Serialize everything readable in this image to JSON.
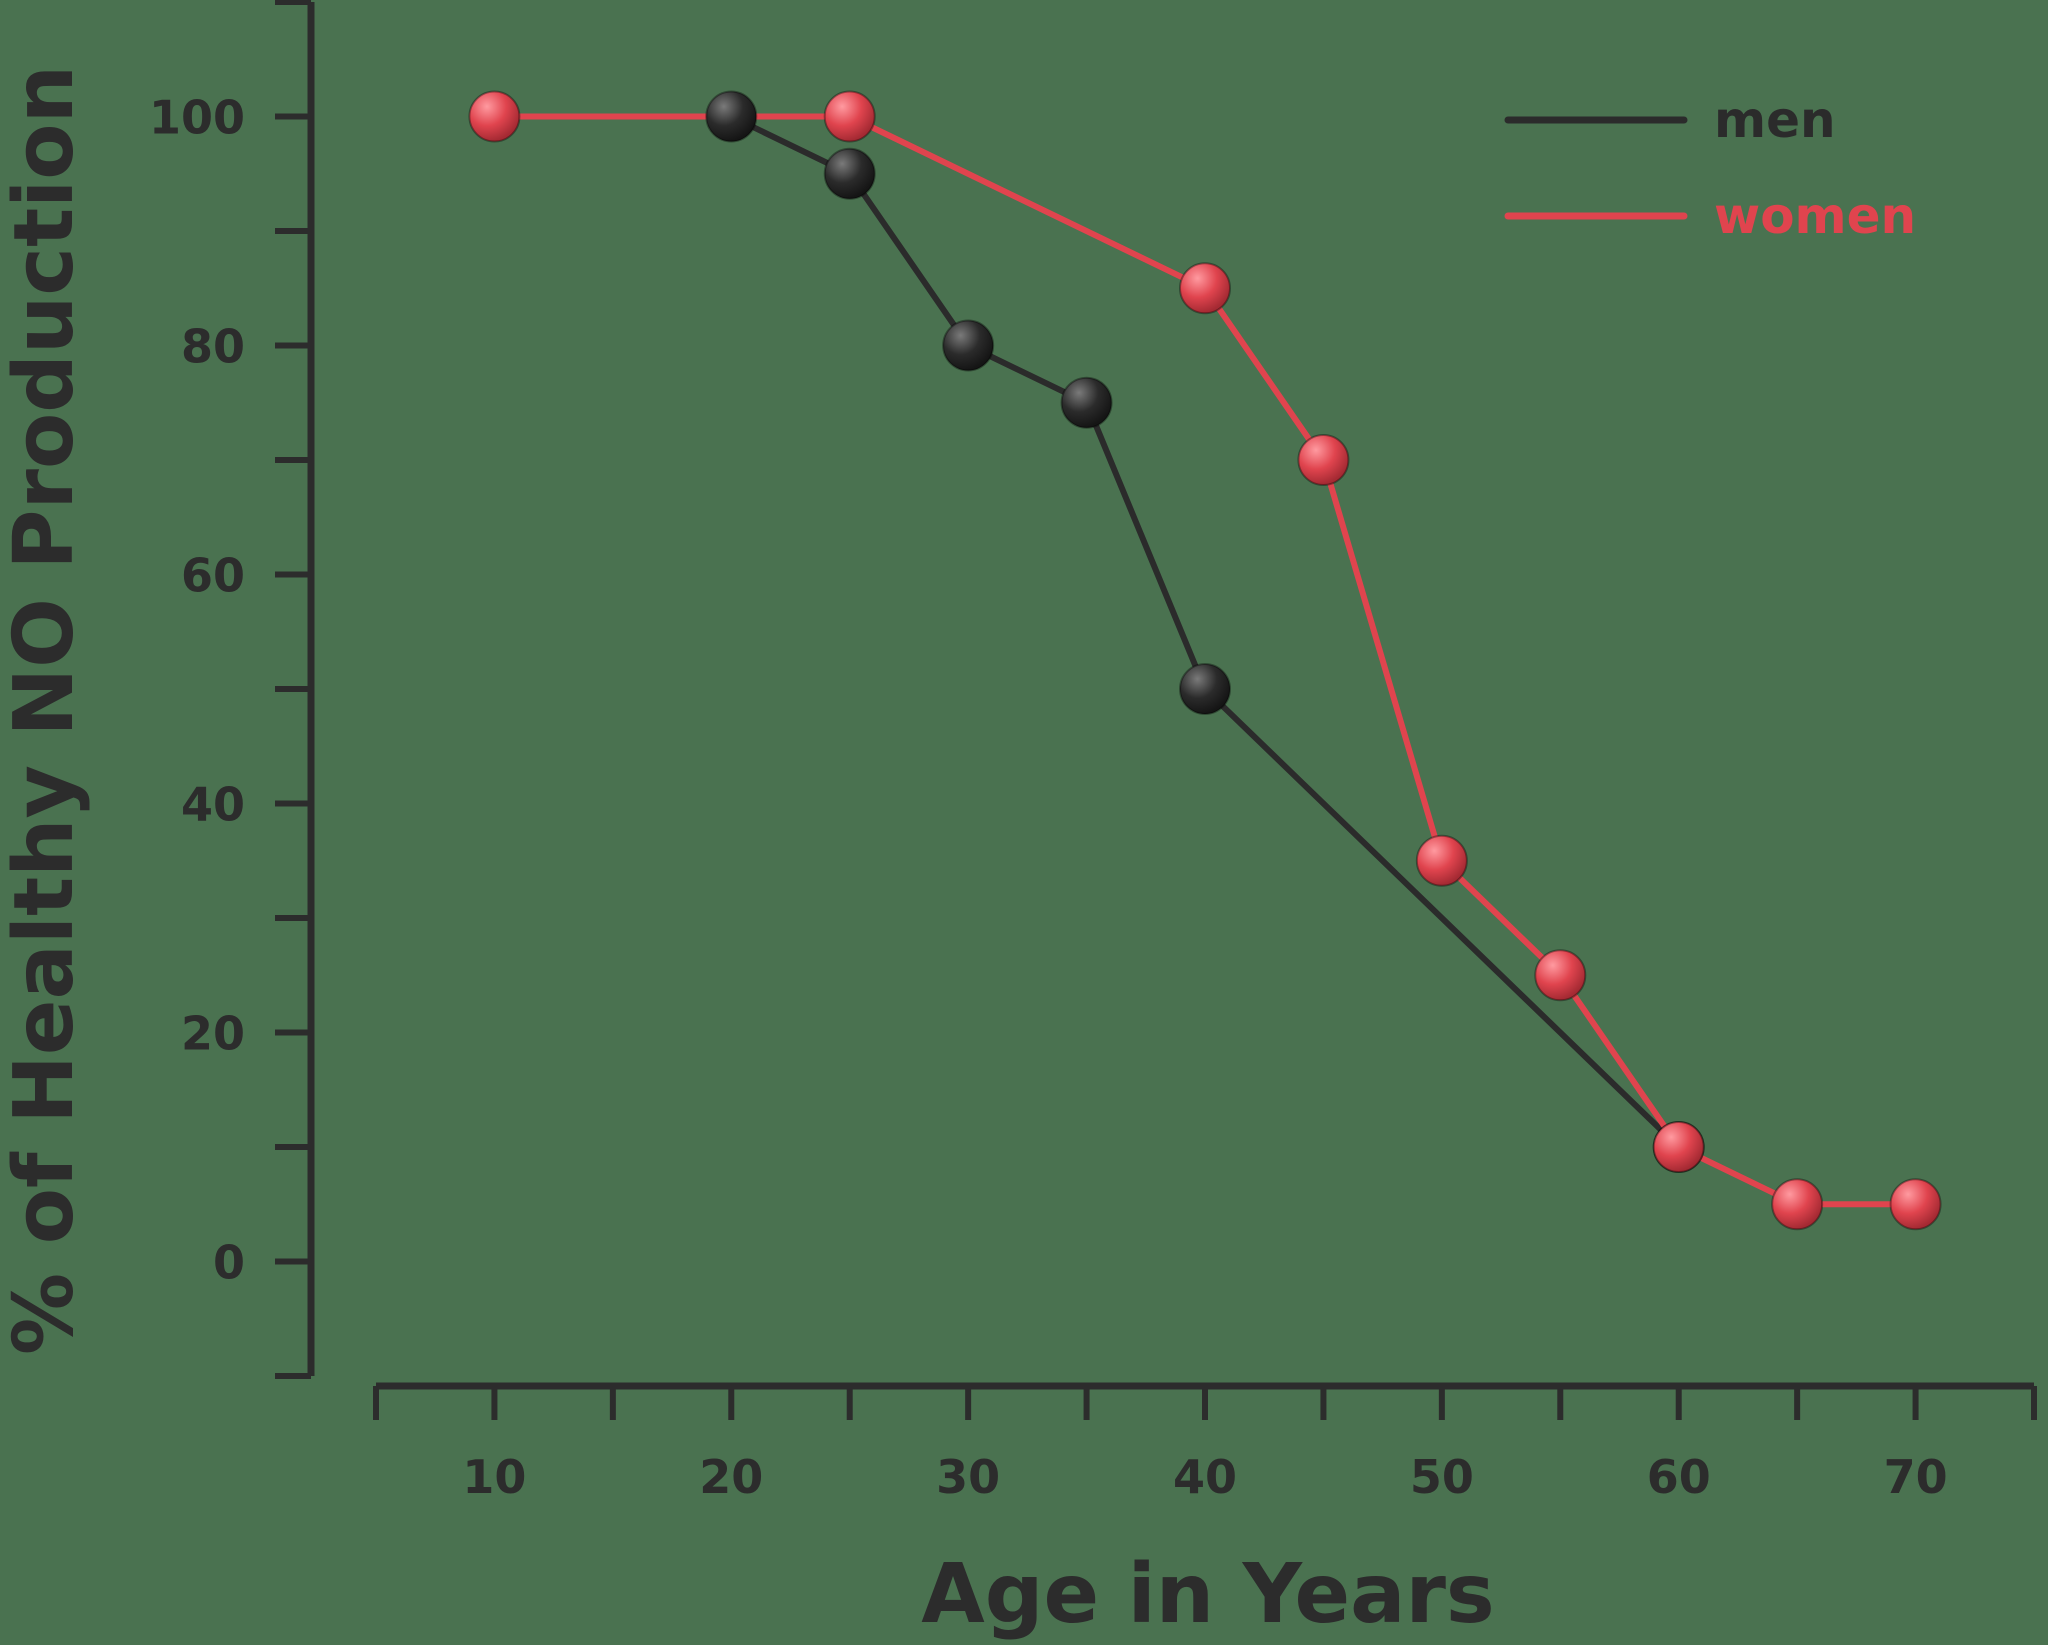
{
  "chart_data": {
    "type": "line",
    "title": "",
    "xlabel": "Age in Years",
    "ylabel": "% of Healthy NO Production",
    "xlim": [
      5,
      75
    ],
    "ylim": [
      -10,
      110
    ],
    "x_ticks": [
      5,
      10,
      15,
      20,
      25,
      30,
      35,
      40,
      45,
      50,
      55,
      60,
      65,
      70,
      75
    ],
    "x_tick_labels": [
      {
        "value": 10,
        "label": "10"
      },
      {
        "value": 20,
        "label": "20"
      },
      {
        "value": 30,
        "label": "30"
      },
      {
        "value": 40,
        "label": "40"
      },
      {
        "value": 50,
        "label": "50"
      },
      {
        "value": 60,
        "label": "60"
      },
      {
        "value": 70,
        "label": "70"
      }
    ],
    "y_ticks": [
      -10,
      0,
      10,
      20,
      30,
      40,
      50,
      60,
      70,
      80,
      90,
      100,
      110
    ],
    "y_tick_labels": [
      {
        "value": 0,
        "label": "0"
      },
      {
        "value": 20,
        "label": "20"
      },
      {
        "value": 40,
        "label": "40"
      },
      {
        "value": 60,
        "label": "60"
      },
      {
        "value": 80,
        "label": "80"
      },
      {
        "value": 100,
        "label": "100"
      }
    ],
    "grid": false,
    "legend_position": "top-right",
    "series": [
      {
        "name": "men",
        "color": "#2b2b2b",
        "x": [
          20,
          25,
          30,
          35,
          40,
          60
        ],
        "y": [
          100,
          95,
          80,
          75,
          50,
          10
        ]
      },
      {
        "name": "women",
        "color": "#e0444e",
        "x": [
          10,
          25,
          40,
          45,
          50,
          55,
          60,
          65,
          70
        ],
        "y": [
          100,
          100,
          85,
          70,
          35,
          25,
          10,
          5,
          5
        ]
      }
    ]
  },
  "colors": {
    "background": "#4a7250",
    "axis": "#2c2c2c",
    "text": "#2c2c2c"
  }
}
